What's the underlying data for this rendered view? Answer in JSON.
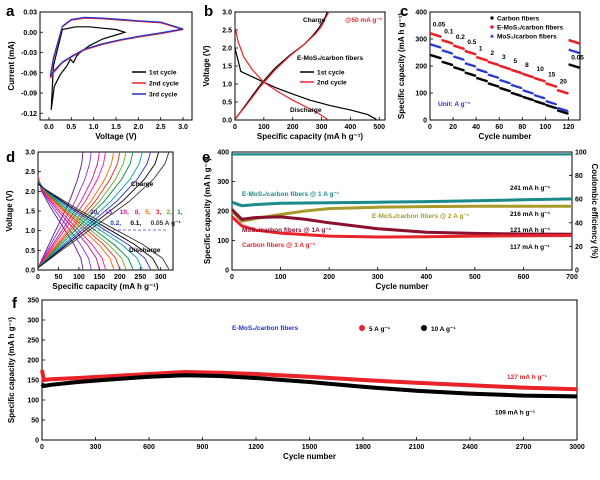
{
  "figure": {
    "panels": [
      "a",
      "b",
      "c",
      "d",
      "e",
      "f"
    ]
  },
  "chart_data": [
    {
      "panel": "a",
      "type": "line",
      "xlabel": "Voltage (V)",
      "ylabel": "Current (mA)",
      "xlim": [
        -0.2,
        3.2
      ],
      "ylim": [
        -0.13,
        0.03
      ],
      "xticks": [
        "0.0",
        "0.5",
        "1.0",
        "1.5",
        "2.0",
        "2.5",
        "3.0"
      ],
      "yticks": [
        "-0.12",
        "-0.09",
        "-0.06",
        "-0.03",
        "0.00",
        "0.03"
      ],
      "legend_position": "right",
      "series": [
        {
          "name": "1st cycle",
          "color": "#000000",
          "x": [
            0.05,
            0.12,
            0.25,
            0.4,
            0.48,
            0.55,
            0.62,
            0.7,
            0.9,
            1.2,
            1.5,
            1.7,
            1.5,
            1.2,
            0.9,
            0.6,
            0.3,
            0.1,
            0.05
          ],
          "y": [
            -0.115,
            -0.08,
            -0.063,
            -0.05,
            -0.04,
            -0.045,
            -0.035,
            -0.03,
            -0.02,
            -0.01,
            -0.004,
            0.0,
            0.004,
            0.006,
            0.008,
            0.008,
            0.004,
            -0.05,
            -0.115
          ]
        },
        {
          "name": "2nd cycle",
          "color": "#e8242a",
          "x": [
            0.03,
            0.1,
            0.3,
            0.55,
            0.8,
            1.2,
            1.6,
            2.0,
            2.5,
            3.0,
            2.5,
            2.0,
            1.6,
            1.2,
            0.8,
            0.5,
            0.3,
            0.1,
            0.03
          ],
          "y": [
            -0.068,
            -0.06,
            -0.045,
            -0.035,
            -0.026,
            -0.018,
            -0.012,
            -0.007,
            -0.002,
            0.004,
            0.014,
            0.016,
            0.018,
            0.02,
            0.021,
            0.018,
            0.008,
            -0.04,
            -0.068
          ]
        },
        {
          "name": "3rd cycle",
          "color": "#2233cc",
          "x": [
            0.03,
            0.1,
            0.3,
            0.55,
            0.8,
            1.2,
            1.6,
            2.0,
            2.5,
            3.0,
            2.5,
            2.0,
            1.6,
            1.2,
            0.8,
            0.5,
            0.3,
            0.1,
            0.03
          ],
          "y": [
            -0.065,
            -0.058,
            -0.044,
            -0.034,
            -0.025,
            -0.017,
            -0.011,
            -0.006,
            -0.001,
            0.005,
            0.015,
            0.017,
            0.019,
            0.021,
            0.022,
            0.019,
            0.009,
            -0.038,
            -0.065
          ]
        }
      ]
    },
    {
      "panel": "b",
      "type": "line",
      "xlabel": "Specific capacity (mA h g⁻¹)",
      "ylabel": "Voltage (V)",
      "xlim": [
        0,
        520
      ],
      "ylim": [
        0,
        3.0
      ],
      "xticks": [
        "0",
        "100",
        "200",
        "300",
        "400",
        "500"
      ],
      "yticks": [
        "0.0",
        "0.5",
        "1.0",
        "1.5",
        "2.0",
        "2.5",
        "3.0"
      ],
      "annotations": {
        "rate": "@50 mA g⁻¹",
        "charge": "Charge",
        "discharge": "Discharge",
        "material": "E-MoS₂/carbon fibers"
      },
      "series": [
        {
          "name": "1st cycle",
          "color": "#000000",
          "discharge": {
            "x": [
              0,
              20,
              60,
              100,
              140,
              200,
              260,
              330,
              400,
              460,
              490
            ],
            "y": [
              2.0,
              1.35,
              1.2,
              1.05,
              0.9,
              0.72,
              0.55,
              0.4,
              0.28,
              0.15,
              0.02
            ]
          },
          "charge": {
            "x": [
              0,
              40,
              90,
              140,
              190,
              240,
              270,
              290,
              310,
              320
            ],
            "y": [
              0.02,
              0.45,
              1.0,
              1.45,
              1.8,
              2.1,
              2.35,
              2.55,
              2.8,
              3.0
            ]
          }
        },
        {
          "name": "2nd cycle",
          "color": "#e8242a",
          "discharge": {
            "x": [
              0,
              10,
              30,
              60,
              100,
              150,
              200,
              250,
              290,
              320
            ],
            "y": [
              2.6,
              2.2,
              1.75,
              1.4,
              1.05,
              0.78,
              0.55,
              0.35,
              0.18,
              0.02
            ]
          },
          "charge": {
            "x": [
              0,
              40,
              90,
              140,
              190,
              240,
              280,
              300,
              315,
              325
            ],
            "y": [
              0.02,
              0.42,
              0.95,
              1.4,
              1.78,
              2.1,
              2.4,
              2.6,
              2.85,
              3.0
            ]
          }
        }
      ]
    },
    {
      "panel": "c",
      "type": "scatter",
      "xlabel": "Cycle number",
      "ylabel": "Specific capacity (mA h g⁻¹)",
      "xlim": [
        0,
        130
      ],
      "ylim": [
        0,
        400
      ],
      "xticks": [
        "0",
        "20",
        "40",
        "60",
        "80",
        "100",
        "120"
      ],
      "yticks": [
        "0",
        "100",
        "200",
        "300",
        "400"
      ],
      "unit_label": "Unit: A g⁻¹",
      "rates": [
        "0.05",
        "0.1",
        "0.2",
        "0.5",
        "1",
        "2",
        "3",
        "5",
        "8",
        "10",
        "15",
        "20",
        "0.05"
      ],
      "series": [
        {
          "name": "Carbon fibers",
          "color": "#000000",
          "marker": "square",
          "values": [
            240,
            215,
            195,
            175,
            155,
            135,
            118,
            100,
            85,
            70,
            55,
            35,
            205
          ]
        },
        {
          "name": "E-MoS₂/carbon fibers",
          "color": "#e8242a",
          "marker": "circle",
          "values": [
            320,
            295,
            275,
            255,
            232,
            215,
            200,
            185,
            170,
            155,
            135,
            110,
            295
          ]
        },
        {
          "name": "MoS₂/carbon fibers",
          "color": "#2233cc",
          "marker": "triangle",
          "values": [
            280,
            258,
            235,
            210,
            188,
            168,
            148,
            130,
            110,
            92,
            70,
            45,
            260
          ]
        }
      ]
    },
    {
      "panel": "d",
      "type": "line",
      "xlabel": "Specific capacity (mA h g⁻¹)",
      "ylabel": "Voltage (V)",
      "xlim": [
        0,
        330
      ],
      "ylim": [
        0,
        3.0
      ],
      "xticks": [
        "0",
        "50",
        "100",
        "150",
        "200",
        "250",
        "300"
      ],
      "yticks": [
        "0.0",
        "0.5",
        "1.0",
        "1.5",
        "2.0",
        "2.5",
        "3.0"
      ],
      "annotations": {
        "charge": "Charge",
        "discharge": "Discharge"
      },
      "rates_line1": [
        "20,",
        "15,",
        "10,",
        "8,",
        "5,",
        "3,",
        "2,",
        "1,"
      ],
      "rates_line2": [
        "0.5,",
        "0.2,",
        "0.1,",
        "0.05 A g⁻¹"
      ],
      "series": [
        {
          "name": "20",
          "color": "#5a1a88",
          "cap": 110
        },
        {
          "name": "15",
          "color": "#8a2be2",
          "cap": 130
        },
        {
          "name": "10",
          "color": "#c71585",
          "cap": 150
        },
        {
          "name": "8",
          "color": "#ff1493",
          "cap": 165
        },
        {
          "name": "5",
          "color": "#ff6600",
          "cap": 185
        },
        {
          "name": "3",
          "color": "#e8242a",
          "cap": 200
        },
        {
          "name": "2",
          "color": "#66aa22",
          "cap": 215
        },
        {
          "name": "1",
          "color": "#008844",
          "cap": 232
        },
        {
          "name": "0.5",
          "color": "#00a0a0",
          "cap": 255
        },
        {
          "name": "0.2",
          "color": "#2233cc",
          "cap": 275
        },
        {
          "name": "0.1",
          "color": "#000000",
          "cap": 295
        },
        {
          "name": "0.05",
          "color": "#333333",
          "cap": 320
        }
      ]
    },
    {
      "panel": "e",
      "type": "line",
      "xlabel": "Cycle number",
      "ylabel": "Specific capacity (mA h g⁻¹)",
      "y2label": "Coulombic efficiency (%)",
      "xlim": [
        0,
        700
      ],
      "ylim": [
        0,
        400
      ],
      "y2lim": [
        0,
        100
      ],
      "xticks": [
        "0",
        "100",
        "200",
        "300",
        "400",
        "500",
        "600",
        "700"
      ],
      "yticks": [
        "0",
        "100",
        "200",
        "300",
        "400"
      ],
      "y2ticks": [
        "0",
        "20",
        "40",
        "60",
        "80",
        "100"
      ],
      "series": [
        {
          "name": "E-MoS₂/carbon fibers @ 1 A g⁻¹",
          "color": "#1a8a8a",
          "x": [
            0,
            20,
            50,
            100,
            200,
            300,
            400,
            500,
            600,
            700
          ],
          "y": [
            230,
            218,
            222,
            226,
            228,
            230,
            232,
            235,
            238,
            241
          ],
          "end_label": "241 mA h g⁻¹"
        },
        {
          "name": "E-MoS₂/carbon fibers @ 2 A g⁻¹",
          "color": "#a89a2a",
          "x": [
            0,
            20,
            50,
            100,
            150,
            200,
            300,
            400,
            500,
            600,
            700
          ],
          "y": [
            200,
            165,
            175,
            188,
            200,
            208,
            213,
            215,
            216,
            216,
            216
          ],
          "end_label": "216 mA h g⁻¹"
        },
        {
          "name": "MoS₂/carbon fibers @ 1A g⁻¹",
          "color": "#8a1030",
          "x": [
            0,
            20,
            50,
            100,
            150,
            200,
            300,
            400,
            500,
            600,
            700
          ],
          "y": [
            205,
            172,
            178,
            180,
            172,
            160,
            140,
            128,
            124,
            122,
            121
          ],
          "end_label": "121 mA h g⁻¹"
        },
        {
          "name": "Carbon fibers @ 1 A g⁻¹",
          "color": "#e8242a",
          "x": [
            0,
            20,
            50,
            100,
            200,
            300,
            400,
            500,
            600,
            700
          ],
          "y": [
            180,
            150,
            135,
            125,
            115,
            112,
            113,
            115,
            116,
            117
          ],
          "end_label": "117 mA h g⁻¹"
        },
        {
          "name": "Coulombic efficiency",
          "color": "#1a8a8a",
          "axis": "right",
          "x": [
            0,
            700
          ],
          "y": [
            98,
            98
          ]
        }
      ]
    },
    {
      "panel": "f",
      "type": "scatter",
      "xlabel": "Cycle number",
      "ylabel": "Specific capacity (mA h g⁻¹)",
      "xlim": [
        0,
        3000
      ],
      "ylim": [
        0,
        350
      ],
      "xticks": [
        "0",
        "300",
        "600",
        "900",
        "1200",
        "1500",
        "1800",
        "2100",
        "2400",
        "2700",
        "3000"
      ],
      "yticks": [
        "0",
        "50",
        "100",
        "150",
        "200",
        "250",
        "300",
        "350"
      ],
      "material_label": "E-MoS₂/carbon fibers",
      "series": [
        {
          "name": "5 A g⁻¹",
          "color": "#e8242a",
          "x": [
            0,
            10,
            50,
            200,
            400,
            600,
            800,
            1000,
            1200,
            1500,
            1800,
            2100,
            2400,
            2700,
            3000
          ],
          "y": [
            175,
            150,
            152,
            155,
            160,
            165,
            170,
            168,
            165,
            158,
            150,
            143,
            137,
            131,
            127
          ],
          "end_label": "127 mA h g⁻¹"
        },
        {
          "name": "10 A g⁻¹",
          "color": "#000000",
          "x": [
            0,
            10,
            50,
            200,
            400,
            600,
            800,
            1000,
            1200,
            1500,
            1800,
            2100,
            2400,
            2700,
            3000
          ],
          "y": [
            140,
            135,
            138,
            145,
            152,
            158,
            162,
            160,
            155,
            145,
            133,
            123,
            116,
            111,
            109
          ],
          "end_label": "109 mA h g⁻¹"
        }
      ]
    }
  ]
}
